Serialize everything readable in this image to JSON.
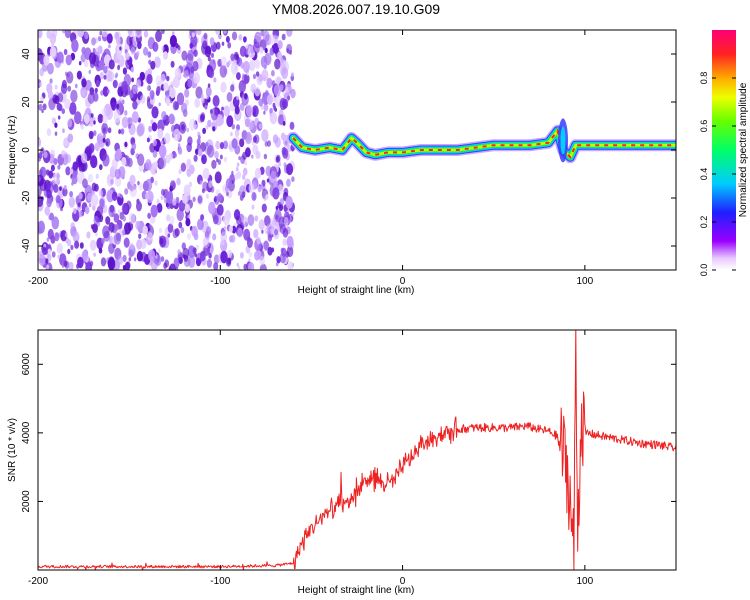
{
  "title": "YM08.2026.007.19.10.G09",
  "colors": {
    "axis": "#000000",
    "snr_line": "#ee2222",
    "noise_purple": "#7733dd",
    "background": "#ffffff"
  },
  "chart_data": [
    {
      "type": "heatmap",
      "name": "spectrogram",
      "xlabel": "Height of straight line (km)",
      "ylabel": "Frequency (Hz)",
      "xlim": [
        -200,
        150
      ],
      "ylim": [
        -50,
        50
      ],
      "xticks": [
        -200,
        -100,
        0,
        100
      ],
      "yticks": [
        40,
        20,
        0,
        -20,
        -40
      ],
      "noise_region_x": [
        -200,
        -60
      ],
      "ridge": {
        "description_points_x": [
          -60,
          -55,
          -48,
          -40,
          -33,
          -28,
          -25,
          -20,
          -15,
          -8,
          0,
          10,
          20,
          30,
          40,
          50,
          60,
          70,
          80,
          85,
          88,
          92,
          95,
          100,
          120,
          150
        ],
        "description_points_freq": [
          5,
          1,
          0,
          1,
          0,
          5,
          3,
          -1,
          -2,
          -1,
          -1,
          0,
          0,
          0,
          1,
          2,
          2,
          2,
          3,
          8,
          0,
          -3,
          2,
          2,
          2,
          2
        ]
      },
      "colorbar": {
        "label": "Normalized spectral amplitude",
        "range": [
          0,
          1
        ],
        "ticks": [
          0.0,
          0.2,
          0.4,
          0.6,
          0.8
        ],
        "tick_labels": [
          "0.0",
          "0.2",
          "0.4",
          "0.6",
          "0.8"
        ]
      }
    },
    {
      "type": "line",
      "name": "snr",
      "xlabel": "Height of straight line (km)",
      "ylabel": "SNR (10 * v/v)",
      "xlim": [
        -200,
        150
      ],
      "ylim": [
        0,
        7000
      ],
      "xticks": [
        -200,
        -100,
        0,
        100
      ],
      "yticks": [
        2000,
        4000,
        6000
      ],
      "series": [
        {
          "name": "SNR",
          "x": [
            -200,
            -150,
            -100,
            -70,
            -60,
            -55,
            -50,
            -45,
            -40,
            -35,
            -30,
            -25,
            -20,
            -15,
            -10,
            -5,
            0,
            5,
            10,
            15,
            20,
            25,
            30,
            40,
            50,
            60,
            68,
            75,
            80,
            85,
            88,
            90,
            92,
            94,
            95,
            96,
            98,
            100,
            110,
            120,
            130,
            140,
            150
          ],
          "values": [
            100,
            100,
            100,
            130,
            200,
            800,
            1200,
            1500,
            1700,
            1900,
            2000,
            2300,
            2600,
            2700,
            2500,
            2600,
            3000,
            3300,
            3600,
            3800,
            3950,
            4000,
            4100,
            4150,
            4150,
            4150,
            4200,
            4100,
            4050,
            3900,
            3500,
            3000,
            2000,
            500,
            6800,
            1000,
            4500,
            4000,
            3900,
            3800,
            3700,
            3650,
            3550
          ]
        }
      ]
    }
  ]
}
